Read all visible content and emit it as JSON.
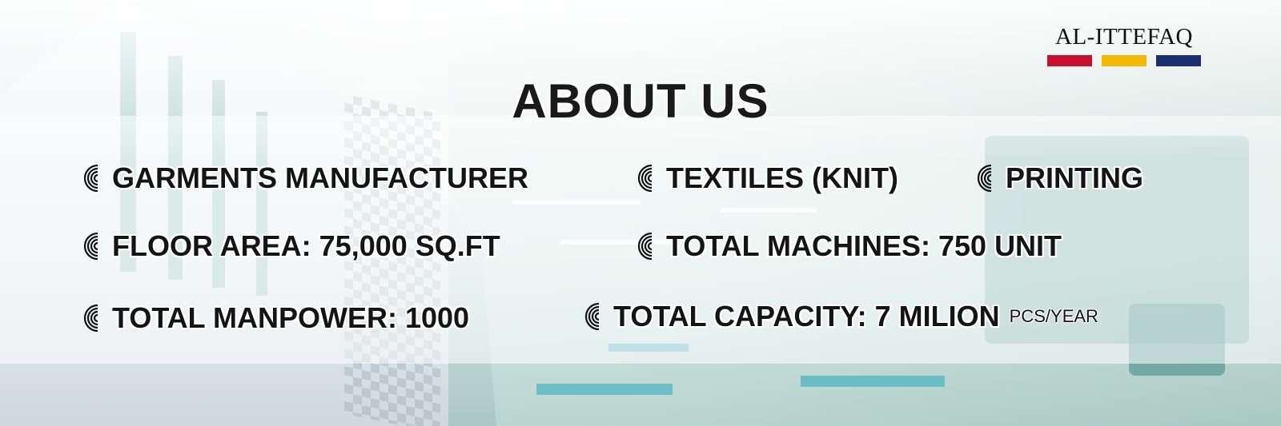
{
  "logo": {
    "text": "AL-ITTEFAQ",
    "bar_colors": [
      "#c8102e",
      "#f5b800",
      "#1b2f6e"
    ]
  },
  "title": "ABOUT US",
  "items": [
    {
      "label": "GARMENTS MANUFACTURER",
      "icon": "concentric-arcs-icon"
    },
    {
      "label": "TEXTILES (KNIT)",
      "icon": "concentric-arcs-icon"
    },
    {
      "label": "PRINTING",
      "icon": "concentric-arcs-icon"
    },
    {
      "label": "FLOOR AREA: 75,000 SQ.FT",
      "icon": "concentric-arcs-icon"
    },
    {
      "label": "TOTAL MACHINES: 750 UNIT",
      "icon": "concentric-arcs-icon"
    },
    {
      "label": "TOTAL MANPOWER: 1000",
      "icon": "concentric-arcs-icon"
    },
    {
      "label": "TOTAL CAPACITY: 7 MILION",
      "unit": "PCS/YEAR",
      "icon": "concentric-arcs-icon"
    }
  ]
}
